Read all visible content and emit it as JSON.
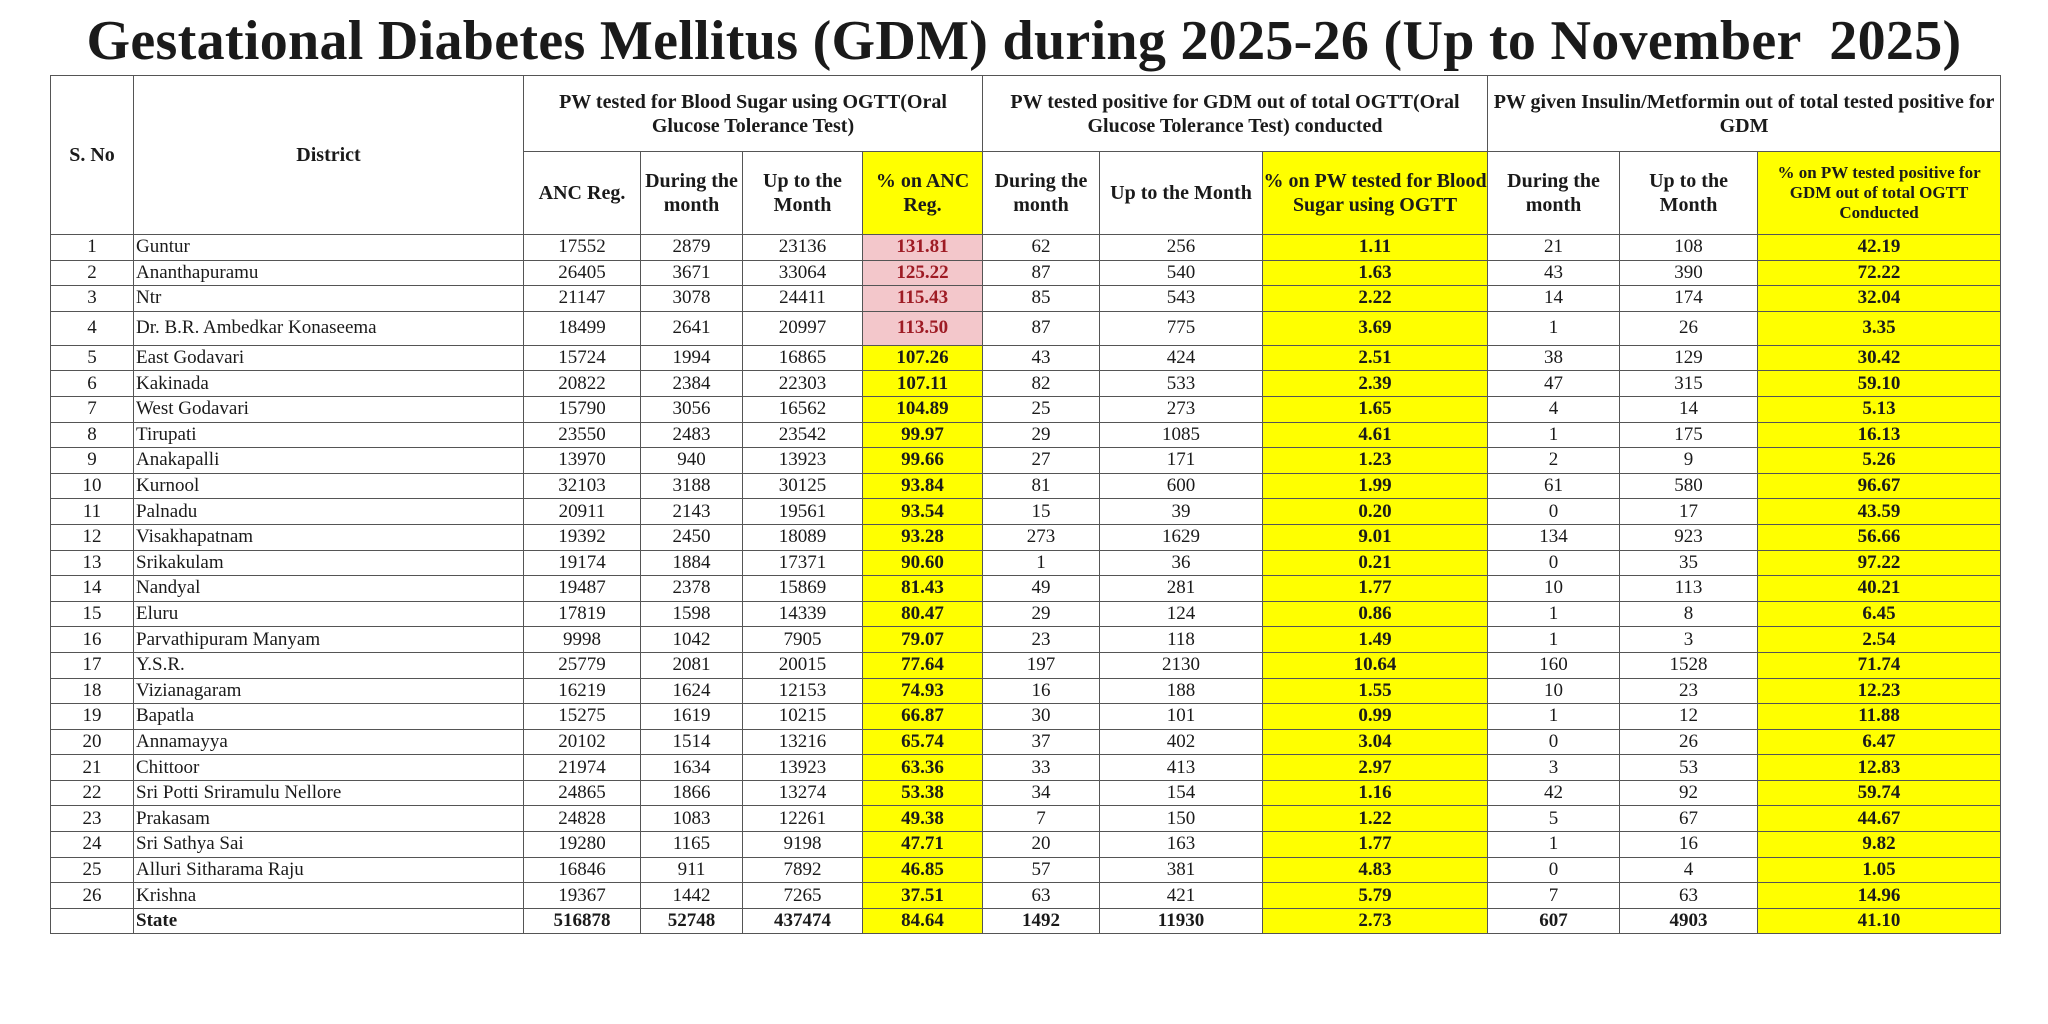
{
  "title": "Gestational Diabetes Mellitus (GDM) during 2025-26 (Up to November  2025)",
  "headers": {
    "sno": "S. No",
    "district": "District",
    "group1": "PW tested for Blood Sugar using OGTT(Oral Glucose Tolerance Test)",
    "group2": "PW tested positive for GDM out of total OGTT(Oral Glucose Tolerance Test) conducted",
    "group3": "PW given Insulin/Metformin out of total tested positive for GDM",
    "anc_reg": "ANC Reg.",
    "during_month": "During the month",
    "up_to_month": "Up to the Month",
    "pct_anc": "% on ANC Reg.",
    "g2_during": "During the month",
    "g2_upto": "Up to the Month",
    "pct_ogtt": "% on PW tested for Blood Sugar using OGTT",
    "g3_during": "During the month",
    "g3_upto": "Up to the Month",
    "pct_gdm": "% on PW tested positive for GDM out of total OGTT Conducted"
  },
  "rows": [
    {
      "sno": "1",
      "district": "Guntur",
      "anc": "17552",
      "t_month": "2879",
      "t_upto": "23136",
      "pct_anc": "131.81",
      "p_month": "62",
      "p_upto": "256",
      "pct_ogtt": "1.11",
      "i_month": "21",
      "i_upto": "108",
      "pct_gdm": "42.19",
      "flag": "pink"
    },
    {
      "sno": "2",
      "district": "Ananthapuramu",
      "anc": "26405",
      "t_month": "3671",
      "t_upto": "33064",
      "pct_anc": "125.22",
      "p_month": "87",
      "p_upto": "540",
      "pct_ogtt": "1.63",
      "i_month": "43",
      "i_upto": "390",
      "pct_gdm": "72.22",
      "flag": "pink"
    },
    {
      "sno": "3",
      "district": "Ntr",
      "anc": "21147",
      "t_month": "3078",
      "t_upto": "24411",
      "pct_anc": "115.43",
      "p_month": "85",
      "p_upto": "543",
      "pct_ogtt": "2.22",
      "i_month": "14",
      "i_upto": "174",
      "pct_gdm": "32.04",
      "flag": "pink"
    },
    {
      "sno": "4",
      "district": "Dr. B.R. Ambedkar Konaseema",
      "anc": "18499",
      "t_month": "2641",
      "t_upto": "20997",
      "pct_anc": "113.50",
      "p_month": "87",
      "p_upto": "775",
      "pct_ogtt": "3.69",
      "i_month": "1",
      "i_upto": "26",
      "pct_gdm": "3.35",
      "flag": "pink"
    },
    {
      "sno": "5",
      "district": "East Godavari",
      "anc": "15724",
      "t_month": "1994",
      "t_upto": "16865",
      "pct_anc": "107.26",
      "p_month": "43",
      "p_upto": "424",
      "pct_ogtt": "2.51",
      "i_month": "38",
      "i_upto": "129",
      "pct_gdm": "30.42",
      "flag": "yellow"
    },
    {
      "sno": "6",
      "district": "Kakinada",
      "anc": "20822",
      "t_month": "2384",
      "t_upto": "22303",
      "pct_anc": "107.11",
      "p_month": "82",
      "p_upto": "533",
      "pct_ogtt": "2.39",
      "i_month": "47",
      "i_upto": "315",
      "pct_gdm": "59.10",
      "flag": "yellow"
    },
    {
      "sno": "7",
      "district": "West Godavari",
      "anc": "15790",
      "t_month": "3056",
      "t_upto": "16562",
      "pct_anc": "104.89",
      "p_month": "25",
      "p_upto": "273",
      "pct_ogtt": "1.65",
      "i_month": "4",
      "i_upto": "14",
      "pct_gdm": "5.13",
      "flag": "yellow"
    },
    {
      "sno": "8",
      "district": "Tirupati",
      "anc": "23550",
      "t_month": "2483",
      "t_upto": "23542",
      "pct_anc": "99.97",
      "p_month": "29",
      "p_upto": "1085",
      "pct_ogtt": "4.61",
      "i_month": "1",
      "i_upto": "175",
      "pct_gdm": "16.13",
      "flag": "yellow"
    },
    {
      "sno": "9",
      "district": "Anakapalli",
      "anc": "13970",
      "t_month": "940",
      "t_upto": "13923",
      "pct_anc": "99.66",
      "p_month": "27",
      "p_upto": "171",
      "pct_ogtt": "1.23",
      "i_month": "2",
      "i_upto": "9",
      "pct_gdm": "5.26",
      "flag": "yellow"
    },
    {
      "sno": "10",
      "district": "Kurnool",
      "anc": "32103",
      "t_month": "3188",
      "t_upto": "30125",
      "pct_anc": "93.84",
      "p_month": "81",
      "p_upto": "600",
      "pct_ogtt": "1.99",
      "i_month": "61",
      "i_upto": "580",
      "pct_gdm": "96.67",
      "flag": "yellow"
    },
    {
      "sno": "11",
      "district": "Palnadu",
      "anc": "20911",
      "t_month": "2143",
      "t_upto": "19561",
      "pct_anc": "93.54",
      "p_month": "15",
      "p_upto": "39",
      "pct_ogtt": "0.20",
      "i_month": "0",
      "i_upto": "17",
      "pct_gdm": "43.59",
      "flag": "yellow"
    },
    {
      "sno": "12",
      "district": "Visakhapatnam",
      "anc": "19392",
      "t_month": "2450",
      "t_upto": "18089",
      "pct_anc": "93.28",
      "p_month": "273",
      "p_upto": "1629",
      "pct_ogtt": "9.01",
      "i_month": "134",
      "i_upto": "923",
      "pct_gdm": "56.66",
      "flag": "yellow"
    },
    {
      "sno": "13",
      "district": "Srikakulam",
      "anc": "19174",
      "t_month": "1884",
      "t_upto": "17371",
      "pct_anc": "90.60",
      "p_month": "1",
      "p_upto": "36",
      "pct_ogtt": "0.21",
      "i_month": "0",
      "i_upto": "35",
      "pct_gdm": "97.22",
      "flag": "yellow"
    },
    {
      "sno": "14",
      "district": "Nandyal",
      "anc": "19487",
      "t_month": "2378",
      "t_upto": "15869",
      "pct_anc": "81.43",
      "p_month": "49",
      "p_upto": "281",
      "pct_ogtt": "1.77",
      "i_month": "10",
      "i_upto": "113",
      "pct_gdm": "40.21",
      "flag": "yellow"
    },
    {
      "sno": "15",
      "district": "Eluru",
      "anc": "17819",
      "t_month": "1598",
      "t_upto": "14339",
      "pct_anc": "80.47",
      "p_month": "29",
      "p_upto": "124",
      "pct_ogtt": "0.86",
      "i_month": "1",
      "i_upto": "8",
      "pct_gdm": "6.45",
      "flag": "yellow"
    },
    {
      "sno": "16",
      "district": "Parvathipuram Manyam",
      "anc": "9998",
      "t_month": "1042",
      "t_upto": "7905",
      "pct_anc": "79.07",
      "p_month": "23",
      "p_upto": "118",
      "pct_ogtt": "1.49",
      "i_month": "1",
      "i_upto": "3",
      "pct_gdm": "2.54",
      "flag": "yellow"
    },
    {
      "sno": "17",
      "district": "Y.S.R.",
      "anc": "25779",
      "t_month": "2081",
      "t_upto": "20015",
      "pct_anc": "77.64",
      "p_month": "197",
      "p_upto": "2130",
      "pct_ogtt": "10.64",
      "i_month": "160",
      "i_upto": "1528",
      "pct_gdm": "71.74",
      "flag": "yellow"
    },
    {
      "sno": "18",
      "district": "Vizianagaram",
      "anc": "16219",
      "t_month": "1624",
      "t_upto": "12153",
      "pct_anc": "74.93",
      "p_month": "16",
      "p_upto": "188",
      "pct_ogtt": "1.55",
      "i_month": "10",
      "i_upto": "23",
      "pct_gdm": "12.23",
      "flag": "yellow"
    },
    {
      "sno": "19",
      "district": "Bapatla",
      "anc": "15275",
      "t_month": "1619",
      "t_upto": "10215",
      "pct_anc": "66.87",
      "p_month": "30",
      "p_upto": "101",
      "pct_ogtt": "0.99",
      "i_month": "1",
      "i_upto": "12",
      "pct_gdm": "11.88",
      "flag": "yellow"
    },
    {
      "sno": "20",
      "district": "Annamayya",
      "anc": "20102",
      "t_month": "1514",
      "t_upto": "13216",
      "pct_anc": "65.74",
      "p_month": "37",
      "p_upto": "402",
      "pct_ogtt": "3.04",
      "i_month": "0",
      "i_upto": "26",
      "pct_gdm": "6.47",
      "flag": "yellow"
    },
    {
      "sno": "21",
      "district": "Chittoor",
      "anc": "21974",
      "t_month": "1634",
      "t_upto": "13923",
      "pct_anc": "63.36",
      "p_month": "33",
      "p_upto": "413",
      "pct_ogtt": "2.97",
      "i_month": "3",
      "i_upto": "53",
      "pct_gdm": "12.83",
      "flag": "yellow"
    },
    {
      "sno": "22",
      "district": "Sri Potti Sriramulu Nellore",
      "anc": "24865",
      "t_month": "1866",
      "t_upto": "13274",
      "pct_anc": "53.38",
      "p_month": "34",
      "p_upto": "154",
      "pct_ogtt": "1.16",
      "i_month": "42",
      "i_upto": "92",
      "pct_gdm": "59.74",
      "flag": "yellow"
    },
    {
      "sno": "23",
      "district": "Prakasam",
      "anc": "24828",
      "t_month": "1083",
      "t_upto": "12261",
      "pct_anc": "49.38",
      "p_month": "7",
      "p_upto": "150",
      "pct_ogtt": "1.22",
      "i_month": "5",
      "i_upto": "67",
      "pct_gdm": "44.67",
      "flag": "yellow"
    },
    {
      "sno": "24",
      "district": "Sri Sathya Sai",
      "anc": "19280",
      "t_month": "1165",
      "t_upto": "9198",
      "pct_anc": "47.71",
      "p_month": "20",
      "p_upto": "163",
      "pct_ogtt": "1.77",
      "i_month": "1",
      "i_upto": "16",
      "pct_gdm": "9.82",
      "flag": "yellow"
    },
    {
      "sno": "25",
      "district": "Alluri Sitharama Raju",
      "anc": "16846",
      "t_month": "911",
      "t_upto": "7892",
      "pct_anc": "46.85",
      "p_month": "57",
      "p_upto": "381",
      "pct_ogtt": "4.83",
      "i_month": "0",
      "i_upto": "4",
      "pct_gdm": "1.05",
      "flag": "yellow"
    },
    {
      "sno": "26",
      "district": "Krishna",
      "anc": "19367",
      "t_month": "1442",
      "t_upto": "7265",
      "pct_anc": "37.51",
      "p_month": "63",
      "p_upto": "421",
      "pct_ogtt": "5.79",
      "i_month": "7",
      "i_upto": "63",
      "pct_gdm": "14.96",
      "flag": "yellow"
    }
  ],
  "total": {
    "sno": "",
    "district": "State",
    "anc": "516878",
    "t_month": "52748",
    "t_upto": "437474",
    "pct_anc": "84.64",
    "p_month": "1492",
    "p_upto": "11930",
    "pct_ogtt": "2.73",
    "i_month": "607",
    "i_upto": "4903",
    "pct_gdm": "41.10"
  },
  "colors": {
    "highlight_yellow": "#ffff00",
    "highlight_pink": "#f3c7cb",
    "pink_text": "#9e1b24",
    "border": "#555555"
  }
}
